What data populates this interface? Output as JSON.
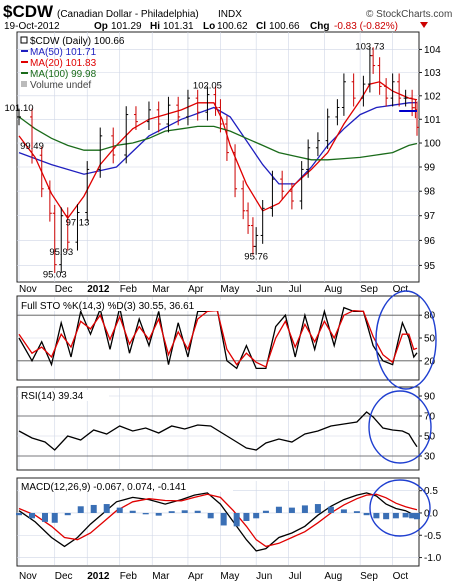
{
  "header": {
    "symbol": "$CDW",
    "description": "(Canadian Dollar - Philadelphia)",
    "exchange": "INDX",
    "date": "19-Oct-2012",
    "open_label": "Op",
    "open": "101.29",
    "high_label": "Hi",
    "high": "101.31",
    "low_label": "Lo",
    "low": "100.62",
    "close_label": "Cl",
    "close": "100.66",
    "change_label": "Chg",
    "change": "-0.83 (-0.82%)",
    "watermark": "© StockCharts.com"
  },
  "colors": {
    "price": "#000000",
    "up_bar": "#000000",
    "down_bar": "#cc0000",
    "ma50": "#1f1fbf",
    "ma20": "#e00000",
    "ma100": "#1a6b1a",
    "volume": "#888888",
    "macd_line": "#000000",
    "signal_line": "#e00000",
    "histogram": "#3a6fb5",
    "annotation_ellipse": "#1f3fd0",
    "annotation_line": "#0000cc",
    "grid": "#cfd6e6",
    "panel_border": "#222222"
  },
  "chart_data": [
    {
      "type": "line",
      "name": "price-panel",
      "legend_position": "top-left",
      "legend": [
        {
          "label": "$CDW (Daily) 100.66",
          "color": "#000000"
        },
        {
          "label": "MA(50) 101.71",
          "color": "#1f1fbf"
        },
        {
          "label": "MA(20) 101.83",
          "color": "#e00000"
        },
        {
          "label": "MA(100) 99.98",
          "color": "#1a6b1a"
        },
        {
          "label": "Volume undef",
          "color": "#888888"
        }
      ],
      "x_axis": {
        "labels": [
          "Nov",
          "Dec",
          "2012",
          "Feb",
          "Mar",
          "Apr",
          "May",
          "Jun",
          "Jul",
          "Aug",
          "Sep",
          "Oct"
        ],
        "positions": [
          0,
          22,
          42,
          62,
          82,
          104,
          124,
          146,
          166,
          188,
          210,
          230
        ],
        "range": [
          0,
          245
        ]
      },
      "ylim": [
        94.5,
        104.5
      ],
      "yticks": [
        95,
        96,
        97,
        98,
        99,
        100,
        101,
        102,
        103,
        104
      ],
      "log_scale": true,
      "grid": true,
      "series": [
        {
          "name": "$CDW (Daily)",
          "style": "bars",
          "x": [
            0,
            8,
            14,
            19,
            22,
            26,
            30,
            36,
            42,
            50,
            58,
            66,
            72,
            80,
            86,
            92,
            98,
            104,
            110,
            116,
            121,
            124,
            128,
            133,
            138,
            141,
            144,
            146,
            150,
            156,
            162,
            168,
            174,
            178,
            184,
            190,
            196,
            200,
            206,
            212,
            216,
            218,
            222,
            226,
            230,
            234,
            238,
            242,
            244,
            245
          ],
          "y": [
            101.1,
            99.49,
            98.1,
            97.1,
            95.03,
            97.0,
            95.93,
            97.13,
            98.9,
            100.3,
            99.5,
            101.2,
            100.9,
            101.4,
            100.8,
            101.6,
            101.1,
            101.9,
            101.3,
            102.05,
            101.5,
            100.8,
            99.6,
            98.1,
            97.2,
            96.6,
            95.76,
            96.2,
            97.3,
            98.5,
            98.0,
            97.6,
            98.9,
            99.8,
            100.1,
            101.1,
            101.5,
            102.6,
            101.9,
            102.5,
            103.73,
            103.3,
            102.4,
            101.9,
            102.6,
            101.9,
            101.9,
            101.49,
            101.4,
            100.66
          ],
          "point_labels": [
            {
              "x": 0,
              "y": 101.1,
              "text": "101.10"
            },
            {
              "x": 8,
              "y": 99.49,
              "text": "99.49"
            },
            {
              "x": 22,
              "y": 95.03,
              "text": "95.03"
            },
            {
              "x": 26,
              "y": 95.93,
              "text": "95.93"
            },
            {
              "x": 36,
              "y": 97.13,
              "text": "97.13"
            },
            {
              "x": 116,
              "y": 102.05,
              "text": "102.05"
            },
            {
              "x": 146,
              "y": 95.76,
              "text": "95.76"
            },
            {
              "x": 216,
              "y": 103.73,
              "text": "103.73"
            }
          ]
        },
        {
          "name": "MA(50)",
          "x": [
            0,
            20,
            40,
            60,
            80,
            100,
            120,
            130,
            140,
            150,
            160,
            170,
            180,
            190,
            200,
            210,
            220,
            230,
            240,
            245
          ],
          "y": [
            99.6,
            99.1,
            98.7,
            99.0,
            100.3,
            101.0,
            101.5,
            101.1,
            100.1,
            99.1,
            98.3,
            98.3,
            99.0,
            99.9,
            100.6,
            101.2,
            101.5,
            101.6,
            101.7,
            101.71
          ]
        },
        {
          "name": "MA(20)",
          "x": [
            0,
            10,
            20,
            30,
            40,
            50,
            60,
            70,
            80,
            90,
            100,
            110,
            120,
            125,
            130,
            140,
            150,
            160,
            170,
            180,
            190,
            200,
            210,
            216,
            222,
            230,
            240,
            245
          ],
          "y": [
            100.3,
            99.4,
            97.9,
            96.9,
            97.8,
            99.1,
            99.9,
            100.6,
            101.0,
            101.2,
            101.4,
            101.7,
            101.7,
            101.0,
            99.9,
            98.3,
            97.2,
            97.5,
            98.3,
            98.9,
            99.6,
            100.8,
            101.8,
            102.5,
            102.6,
            102.2,
            101.9,
            101.83
          ]
        },
        {
          "name": "MA(100)",
          "x": [
            0,
            10,
            20,
            30,
            40,
            50,
            60,
            70,
            80,
            90,
            100,
            110,
            120,
            130,
            140,
            150,
            160,
            170,
            180,
            190,
            200,
            210,
            220,
            230,
            240,
            245
          ],
          "y": [
            101.1,
            100.6,
            100.2,
            99.9,
            99.7,
            99.7,
            99.9,
            100.0,
            100.2,
            100.5,
            100.6,
            100.7,
            100.7,
            100.5,
            100.2,
            99.9,
            99.6,
            99.45,
            99.3,
            99.3,
            99.35,
            99.4,
            99.5,
            99.6,
            99.9,
            99.98
          ]
        }
      ],
      "annotations": [
        {
          "type": "horizontal-line",
          "x": [
            234,
            245
          ],
          "y": 101.35,
          "color": "#0000cc"
        }
      ]
    },
    {
      "type": "line",
      "name": "stochastic-panel",
      "title": "Full STO %K(14,3) %D(3) 30.55, 36.61",
      "ylim": [
        0,
        100
      ],
      "yticks": [
        20,
        50,
        80
      ],
      "reference_lines": [
        20,
        80
      ],
      "grid": true,
      "series": [
        {
          "name": "%K(14,3)",
          "x": [
            0,
            8,
            14,
            20,
            26,
            32,
            38,
            44,
            50,
            56,
            62,
            68,
            74,
            80,
            86,
            92,
            98,
            104,
            110,
            116,
            122,
            128,
            134,
            140,
            146,
            152,
            158,
            164,
            170,
            176,
            182,
            188,
            194,
            200,
            206,
            212,
            218,
            224,
            230,
            236,
            240,
            243,
            245
          ],
          "y": [
            50,
            20,
            45,
            15,
            70,
            25,
            85,
            55,
            88,
            35,
            90,
            30,
            75,
            40,
            85,
            15,
            70,
            25,
            85,
            85,
            88,
            20,
            10,
            40,
            10,
            10,
            65,
            80,
            25,
            80,
            35,
            85,
            40,
            90,
            85,
            85,
            40,
            20,
            15,
            70,
            50,
            25,
            30.55
          ]
        },
        {
          "name": "%D(3)",
          "x": [
            0,
            8,
            14,
            20,
            26,
            32,
            38,
            44,
            50,
            56,
            62,
            68,
            74,
            80,
            86,
            92,
            98,
            104,
            110,
            116,
            122,
            128,
            134,
            140,
            146,
            152,
            158,
            164,
            170,
            176,
            182,
            188,
            194,
            200,
            206,
            212,
            218,
            224,
            230,
            236,
            240,
            243,
            245
          ],
          "y": [
            55,
            30,
            38,
            25,
            55,
            38,
            72,
            62,
            80,
            48,
            78,
            42,
            65,
            48,
            75,
            28,
            58,
            35,
            75,
            85,
            86,
            35,
            15,
            30,
            18,
            12,
            50,
            72,
            38,
            68,
            45,
            72,
            50,
            80,
            86,
            85,
            52,
            28,
            18,
            55,
            55,
            35,
            36.61
          ]
        }
      ]
    },
    {
      "type": "line",
      "name": "rsi-panel",
      "title": "RSI(14) 39.34",
      "ylim": [
        20,
        95
      ],
      "yticks": [
        30,
        50,
        70,
        90
      ],
      "reference_lines": [
        30,
        70
      ],
      "grid": true,
      "series": [
        {
          "name": "RSI(14)",
          "x": [
            0,
            8,
            16,
            22,
            30,
            38,
            46,
            54,
            62,
            70,
            78,
            86,
            94,
            102,
            110,
            118,
            126,
            134,
            140,
            146,
            152,
            160,
            168,
            176,
            184,
            192,
            200,
            208,
            214,
            218,
            224,
            230,
            236,
            240,
            243,
            245
          ],
          "y": [
            55,
            48,
            44,
            36,
            50,
            46,
            56,
            52,
            60,
            55,
            58,
            53,
            60,
            57,
            61,
            60,
            52,
            44,
            38,
            36,
            43,
            47,
            44,
            52,
            55,
            60,
            62,
            64,
            74,
            69,
            58,
            56,
            55,
            52,
            44,
            39.34
          ]
        }
      ]
    },
    {
      "type": "line",
      "name": "macd-panel",
      "title": "MACD(12,26,9) -0.067, 0.074, -0.141",
      "ylim": [
        -1.1,
        0.65
      ],
      "yticks": [
        -1.0,
        -0.5,
        0.0,
        0.5
      ],
      "grid": true,
      "series": [
        {
          "name": "MACD(12,26,9)",
          "x": [
            0,
            10,
            20,
            28,
            36,
            44,
            52,
            60,
            70,
            80,
            90,
            100,
            108,
            116,
            124,
            132,
            140,
            146,
            152,
            160,
            168,
            176,
            184,
            192,
            200,
            208,
            214,
            220,
            226,
            232,
            238,
            242,
            245
          ],
          "y": [
            0.05,
            -0.2,
            -0.55,
            -0.75,
            -0.55,
            -0.25,
            0.0,
            0.25,
            0.35,
            0.3,
            0.2,
            0.3,
            0.4,
            0.45,
            0.2,
            -0.2,
            -0.6,
            -0.85,
            -0.8,
            -0.55,
            -0.45,
            -0.3,
            -0.05,
            0.15,
            0.3,
            0.4,
            0.45,
            0.38,
            0.2,
            0.1,
            0.05,
            -0.02,
            -0.067
          ]
        },
        {
          "name": "Signal",
          "x": [
            0,
            10,
            20,
            28,
            36,
            44,
            52,
            60,
            70,
            80,
            90,
            100,
            108,
            116,
            124,
            132,
            140,
            146,
            152,
            160,
            168,
            176,
            184,
            192,
            200,
            208,
            214,
            220,
            226,
            232,
            238,
            242,
            245
          ],
          "y": [
            0.1,
            -0.05,
            -0.3,
            -0.55,
            -0.6,
            -0.45,
            -0.2,
            0.05,
            0.25,
            0.32,
            0.28,
            0.27,
            0.35,
            0.42,
            0.35,
            0.05,
            -0.3,
            -0.6,
            -0.75,
            -0.68,
            -0.55,
            -0.42,
            -0.22,
            0.0,
            0.18,
            0.32,
            0.4,
            0.42,
            0.34,
            0.22,
            0.14,
            0.1,
            0.074
          ]
        },
        {
          "name": "Histogram",
          "style": "bars",
          "x": [
            0,
            8,
            16,
            22,
            30,
            38,
            46,
            54,
            62,
            70,
            78,
            86,
            94,
            102,
            110,
            118,
            126,
            134,
            140,
            146,
            152,
            160,
            168,
            176,
            184,
            192,
            200,
            208,
            214,
            220,
            226,
            232,
            238,
            242,
            245
          ],
          "y": [
            -0.05,
            -0.12,
            -0.2,
            -0.22,
            -0.05,
            0.15,
            0.18,
            0.2,
            0.12,
            0.05,
            -0.03,
            -0.06,
            0.04,
            0.06,
            0.05,
            -0.12,
            -0.28,
            -0.3,
            -0.18,
            -0.12,
            0.05,
            0.14,
            0.12,
            0.17,
            0.2,
            0.14,
            0.08,
            0.04,
            -0.05,
            -0.12,
            -0.14,
            -0.12,
            -0.1,
            -0.12,
            -0.141
          ]
        }
      ]
    }
  ]
}
